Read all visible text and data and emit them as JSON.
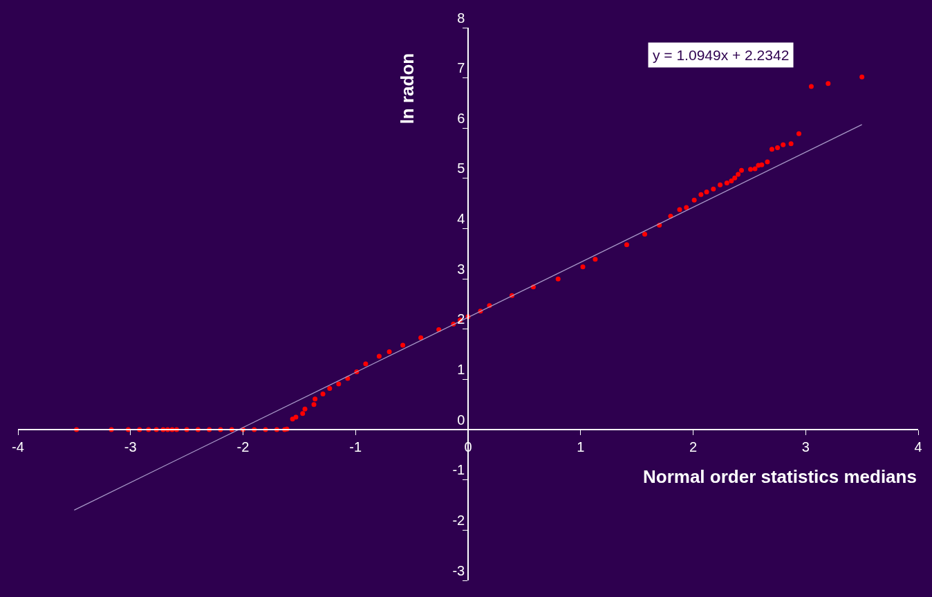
{
  "chart_data": {
    "type": "scatter",
    "xlabel": "Normal order statistics medians",
    "ylabel": "ln radon",
    "annotations": [
      "y = 1.0949x + 2.2342"
    ],
    "xlim": [
      -4,
      4
    ],
    "xticks": [
      -4,
      -3,
      -2,
      -1,
      0,
      1,
      2,
      3,
      4
    ],
    "ylim": [
      -3,
      8
    ],
    "yticks": [
      -3,
      -2,
      -1,
      0,
      1,
      2,
      3,
      4,
      5,
      6,
      7,
      8
    ],
    "grid": false,
    "marker": "circle",
    "series": [
      {
        "color": "#ff0000",
        "x": [
          -3.48,
          -3.17,
          -3.02,
          -2.92,
          -2.84,
          -2.77,
          -2.71,
          -2.67,
          -2.63,
          -2.59,
          -2.5,
          -2.4,
          -2.3,
          -2.2,
          -2.1,
          -2.0,
          -1.9,
          -1.8,
          -1.7,
          -1.63,
          -1.61,
          -1.56,
          -1.53,
          -1.47,
          -1.45,
          -1.37,
          -1.36,
          -1.29,
          -1.23,
          -1.15,
          -1.07,
          -0.99,
          -0.91,
          -0.79,
          -0.7,
          -0.58,
          -0.42,
          -0.26,
          -0.13,
          -0.07,
          0.0,
          0.11,
          0.19,
          0.39,
          0.58,
          0.8,
          1.02,
          1.13,
          1.41,
          1.57,
          1.7,
          1.8,
          1.88,
          1.94,
          2.01,
          2.07,
          2.12,
          2.18,
          2.24,
          2.3,
          2.34,
          2.37,
          2.4,
          2.43,
          2.51,
          2.55,
          2.58,
          2.61,
          2.66,
          2.7,
          2.75,
          2.8,
          2.87,
          2.94,
          3.05,
          3.2,
          3.5
        ],
        "values": [
          0,
          0,
          0,
          0,
          0,
          0,
          0,
          0,
          0,
          0,
          0,
          0,
          0,
          0,
          0,
          0,
          0,
          0,
          0,
          0,
          0.01,
          0.21,
          0.25,
          0.32,
          0.41,
          0.5,
          0.61,
          0.71,
          0.82,
          0.91,
          1.02,
          1.15,
          1.31,
          1.46,
          1.55,
          1.68,
          1.83,
          1.99,
          2.1,
          2.18,
          2.25,
          2.36,
          2.47,
          2.67,
          2.84,
          3.0,
          3.24,
          3.39,
          3.68,
          3.89,
          4.07,
          4.25,
          4.38,
          4.42,
          4.57,
          4.68,
          4.73,
          4.79,
          4.87,
          4.91,
          4.95,
          5.01,
          5.08,
          5.16,
          5.18,
          5.19,
          5.26,
          5.27,
          5.33,
          5.58,
          5.61,
          5.67,
          5.69,
          5.89,
          6.83,
          6.89,
          7.02
        ]
      },
      {
        "type": "line",
        "color": "#a898c8",
        "marker": "none",
        "x": [
          -3.5,
          3.5
        ],
        "values": [
          -1.6,
          6.07
        ]
      }
    ]
  }
}
